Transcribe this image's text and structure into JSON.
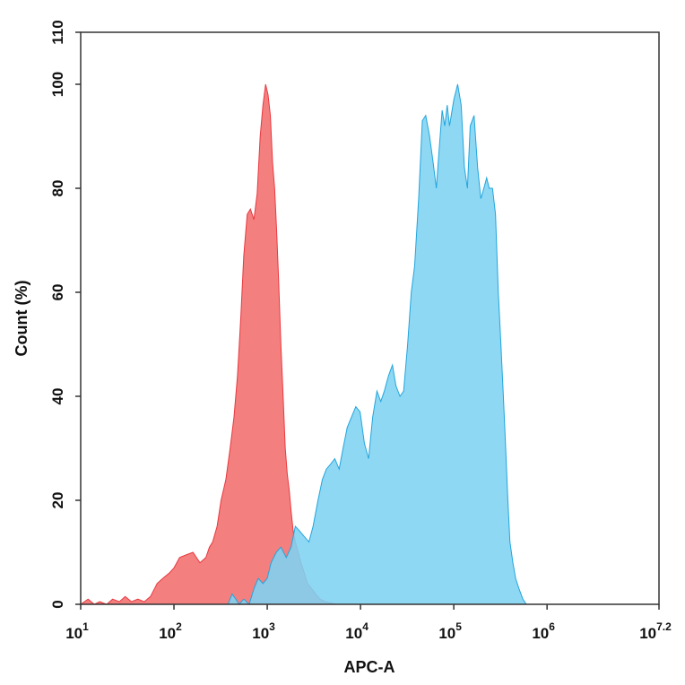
{
  "chart_data": {
    "type": "area",
    "title": "",
    "xlabel": "APC-A",
    "ylabel": "Count (%)",
    "x_scale": "log",
    "xlim": [
      10,
      15848932
    ],
    "ylim": [
      0,
      110
    ],
    "x_ticks": [
      {
        "value": 10,
        "base": "10",
        "exp": "1"
      },
      {
        "value": 100,
        "base": "10",
        "exp": "2"
      },
      {
        "value": 1000,
        "base": "10",
        "exp": "3"
      },
      {
        "value": 10000,
        "base": "10",
        "exp": "4"
      },
      {
        "value": 100000,
        "base": "10",
        "exp": "5"
      },
      {
        "value": 1000000,
        "base": "10",
        "exp": "6"
      },
      {
        "value": 15848932,
        "base": "10",
        "exp": "7.2"
      }
    ],
    "y_ticks": [
      "0",
      "20",
      "40",
      "60",
      "80",
      "100",
      "110"
    ],
    "grid": false,
    "series": [
      {
        "color": "#f47f7f",
        "stroke": "#e8393f",
        "x": [
          10,
          12,
          14,
          16,
          19,
          22,
          26,
          30,
          35,
          41,
          48,
          56,
          66,
          76,
          89,
          100,
          115,
          135,
          160,
          190,
          220,
          240,
          260,
          290,
          320,
          360,
          400,
          440,
          480,
          520,
          560,
          610,
          660,
          720,
          780,
          840,
          900,
          960,
          1020,
          1080,
          1140,
          1200,
          1260,
          1320,
          1400,
          1480,
          1560,
          1640,
          1720,
          1800,
          1900,
          2000,
          2150,
          2300,
          2500,
          2700,
          3000,
          3300,
          3700,
          4200,
          5000,
          5500
        ],
        "y": [
          0,
          1,
          0,
          0.5,
          0,
          1,
          0.5,
          1.5,
          0.5,
          1,
          0.5,
          1.5,
          4,
          5,
          6,
          7,
          9,
          9.5,
          10,
          8,
          9,
          11,
          12,
          15,
          20,
          24,
          30,
          36,
          44,
          55,
          67,
          75,
          76,
          74,
          79,
          90,
          96,
          100,
          98,
          94,
          85,
          80,
          72,
          63,
          50,
          40,
          30,
          25,
          22,
          18,
          14,
          12,
          10,
          8,
          6,
          4,
          3,
          2,
          1,
          0.5,
          0.2,
          0
        ]
      },
      {
        "color": "#7ed3f3",
        "stroke": "#22a5dc",
        "x": [
          380,
          420,
          460,
          500,
          560,
          640,
          720,
          800,
          900,
          1000,
          1100,
          1250,
          1400,
          1600,
          1800,
          2000,
          2250,
          2500,
          2800,
          3100,
          3500,
          3900,
          4300,
          4800,
          5300,
          5900,
          6500,
          7200,
          8000,
          8900,
          9900,
          11000,
          12200,
          13500,
          15000,
          16500,
          18000,
          20000,
          22000,
          24000,
          26500,
          29000,
          32000,
          35000,
          38000,
          42000,
          46000,
          50000,
          55000,
          60000,
          65000,
          70000,
          75000,
          80000,
          85000,
          90000,
          100000,
          110000,
          120000,
          130000,
          140000,
          150000,
          165000,
          180000,
          195000,
          210000,
          225000,
          240000,
          260000,
          280000,
          300000,
          320000,
          340000,
          360000,
          380000,
          400000,
          430000,
          460000,
          500000,
          550000,
          600000,
          700000,
          800000,
          900000,
          1000000,
          1100000,
          1200000,
          1300000,
          1400000,
          1500000
        ],
        "y": [
          0,
          2,
          1,
          0,
          1,
          0,
          3,
          5,
          4,
          5,
          8,
          10,
          11,
          9,
          11,
          15,
          14,
          13,
          12,
          15,
          20,
          24,
          26,
          27,
          28,
          26,
          30,
          34,
          36,
          38,
          37,
          31,
          28,
          36,
          41,
          39,
          41,
          44,
          46,
          42,
          40,
          41,
          50,
          60,
          65,
          78,
          93,
          94,
          90,
          85,
          80,
          88,
          95,
          92,
          96,
          92,
          97,
          100,
          96,
          84,
          80,
          92,
          94,
          84,
          78,
          80,
          82,
          80,
          80,
          75,
          60,
          50,
          40,
          30,
          20,
          12,
          8,
          5,
          3,
          1,
          0,
          0,
          0,
          0,
          0,
          0,
          0,
          0,
          0,
          0
        ]
      }
    ]
  }
}
